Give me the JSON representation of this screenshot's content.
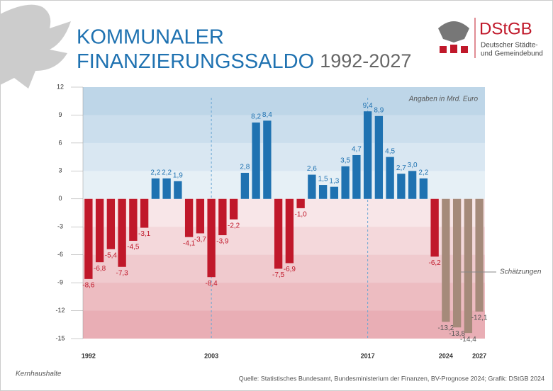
{
  "chart_data": {
    "type": "bar",
    "title": [
      "KOMMUNALER",
      "FINANZIERUNGSSALDO"
    ],
    "title_years": "1992-2027",
    "annotation": "Angaben in Mrd. Euro",
    "estimate_label": "Schätzungen",
    "footnote": "Kernhaushalte",
    "source": "Quelle: Statistisches Bundesamt, Bundesministerium der Finanzen, BV-Prognose 2024; Grafik: DStGB 2024",
    "logo": {
      "name": "DStGB",
      "lines": [
        "Deutscher Städte-",
        "und Gemeindebund"
      ]
    },
    "categories": [
      "1992",
      null,
      null,
      null,
      null,
      null,
      null,
      null,
      null,
      null,
      null,
      "2003",
      null,
      null,
      null,
      null,
      null,
      null,
      null,
      null,
      null,
      null,
      null,
      null,
      null,
      "2017",
      null,
      null,
      null,
      null,
      null,
      null,
      "2024",
      null,
      null,
      "2027"
    ],
    "values": [
      -8.6,
      -6.8,
      -5.4,
      -7.3,
      -4.5,
      -3.1,
      2.2,
      2.2,
      1.9,
      -4.1,
      -3.7,
      -8.4,
      -3.9,
      -2.2,
      2.8,
      8.2,
      8.4,
      -7.5,
      -6.9,
      -1.0,
      2.6,
      1.5,
      1.3,
      3.5,
      4.7,
      9.4,
      8.9,
      4.5,
      2.7,
      3.0,
      2.2,
      -6.2,
      -13.2,
      -13.8,
      -14.4,
      -12.1
    ],
    "value_labels": [
      "-8,6",
      "-6,8",
      "-5,4",
      "-7,3",
      "-4,5",
      "-3,1",
      "2,2",
      "2,2",
      "1,9",
      "-4,1",
      "-3,7",
      "-8,4",
      "-3,9",
      "-2,2",
      "2,8",
      "8,2",
      "8,4",
      "-7,5",
      "-6,9",
      "-1,0",
      "2,6",
      "1,5",
      "1,3",
      "3,5",
      "4,7",
      "9,4",
      "8,9",
      "4,5",
      "2,7",
      "3,0",
      "2,2",
      "-6,2",
      "-13,2",
      "-13,8",
      "-14,4",
      "-12,1"
    ],
    "colors": [
      "#c0182a",
      "#c0182a",
      "#c0182a",
      "#c0182a",
      "#c0182a",
      "#c0182a",
      "#1f72b1",
      "#1f72b1",
      "#1f72b1",
      "#c0182a",
      "#c0182a",
      "#c0182a",
      "#c0182a",
      "#c0182a",
      "#1f72b1",
      "#1f72b1",
      "#1f72b1",
      "#c0182a",
      "#c0182a",
      "#c0182a",
      "#1f72b1",
      "#1f72b1",
      "#1f72b1",
      "#1f72b1",
      "#1f72b1",
      "#1f72b1",
      "#1f72b1",
      "#1f72b1",
      "#1f72b1",
      "#1f72b1",
      "#1f72b1",
      "#c0182a",
      "#a58a7a",
      "#a58a7a",
      "#a58a7a",
      "#a58a7a"
    ],
    "ylim": [
      -15,
      12
    ],
    "yticks": [
      12,
      9,
      6,
      3,
      0,
      -3,
      -6,
      -9,
      -12,
      -15
    ]
  }
}
